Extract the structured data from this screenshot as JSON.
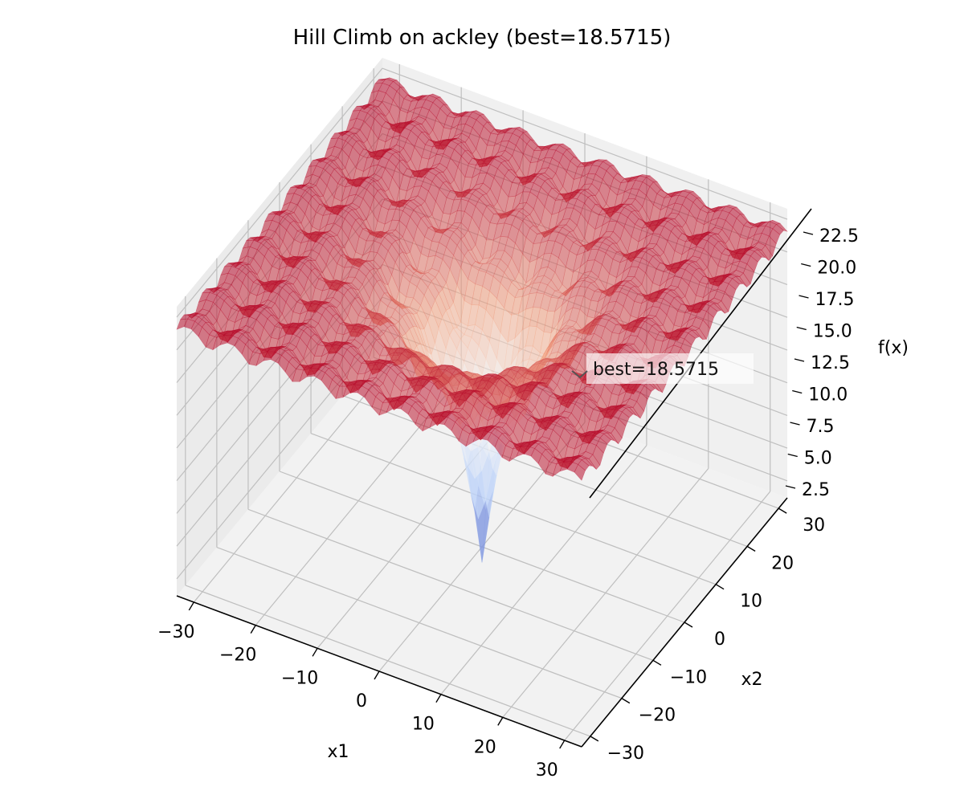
{
  "chart_data": {
    "type": "surface3d",
    "title": "Hill Climb on ackley (best=18.5715)",
    "function": "ackley",
    "xlabel": "x1",
    "ylabel": "x2",
    "zlabel": "f(x)",
    "xlim": [
      -32.768,
      32.768
    ],
    "ylim": [
      -32.768,
      32.768
    ],
    "zlim": [
      1.2,
      23.3
    ],
    "x_ticks": [
      -30,
      -20,
      -10,
      0,
      10,
      20,
      30
    ],
    "x_tick_labels": [
      "−30",
      "−20",
      "−10",
      "0",
      "10",
      "20",
      "30"
    ],
    "y_ticks": [
      -30,
      -20,
      -10,
      0,
      10,
      20,
      30
    ],
    "y_tick_labels": [
      "−30",
      "−20",
      "−10",
      "0",
      "10",
      "20",
      "30"
    ],
    "z_ticks": [
      2.5,
      5.0,
      7.5,
      10.0,
      12.5,
      15.0,
      17.5,
      20.0,
      22.5
    ],
    "z_tick_labels": [
      "2.5",
      "5.0",
      "7.5",
      "10.0",
      "12.5",
      "15.0",
      "17.5",
      "20.0",
      "22.5"
    ],
    "colormap": "coolwarm",
    "colormap_stops": [
      "#3b4cc0",
      "#b8d0f9",
      "#f7f7f7",
      "#f4a582",
      "#b40426"
    ],
    "surface_alpha": 0.55,
    "best": {
      "label": "best=18.5715",
      "value": 18.5715,
      "x1": 30.8,
      "x2": 16.0
    },
    "grid": true,
    "pane_color": "#f2f2f2",
    "grid_color": "#bfbfbf"
  }
}
